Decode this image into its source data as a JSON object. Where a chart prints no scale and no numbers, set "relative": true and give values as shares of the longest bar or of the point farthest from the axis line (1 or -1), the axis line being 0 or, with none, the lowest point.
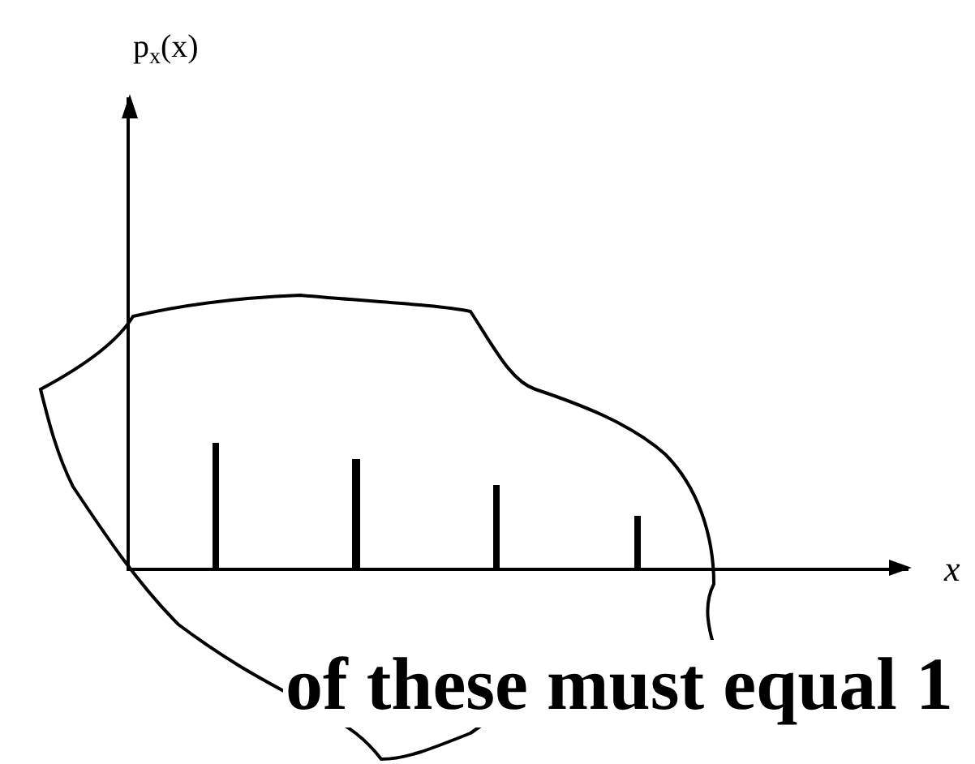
{
  "chart_data": {
    "type": "bar",
    "relative": true,
    "categories": [
      null,
      null,
      null,
      null
    ],
    "values": [
      1,
      0.87,
      0.66,
      0.42
    ],
    "color": "#000000",
    "annotations": [
      "p$_{x}$(x)",
      "x",
      "of these must equal 1"
    ],
    "grid": false
  }
}
